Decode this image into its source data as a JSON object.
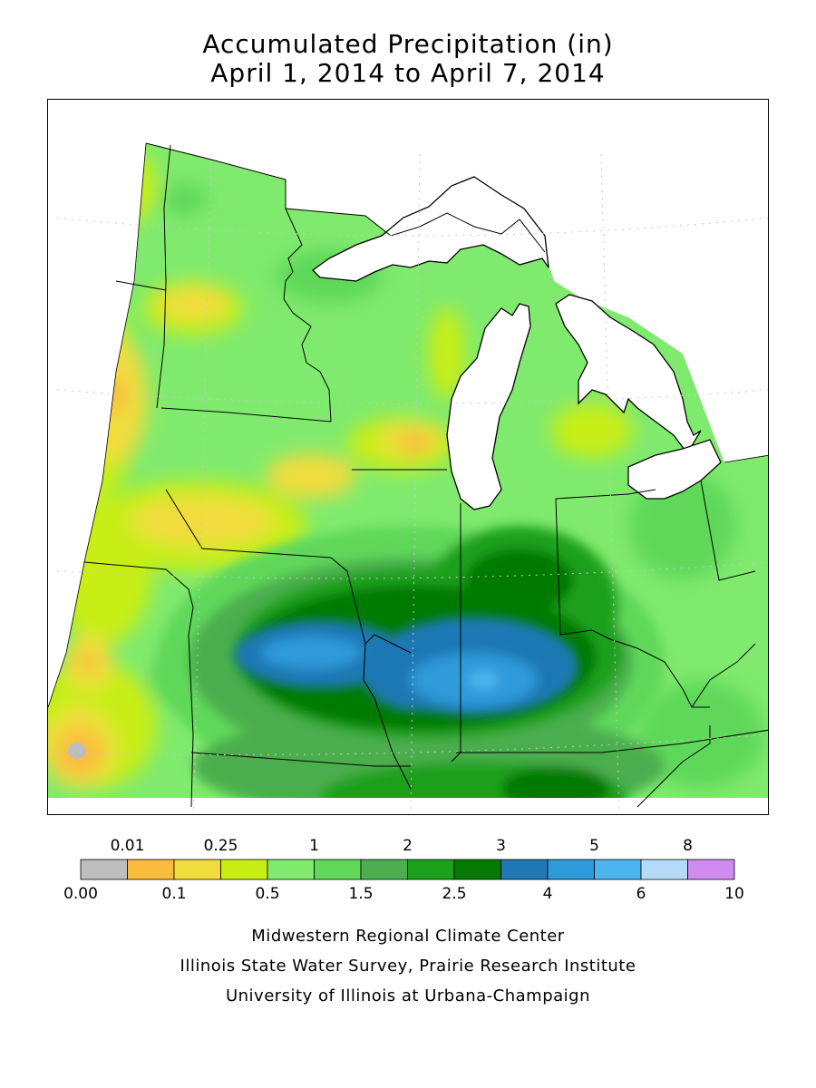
{
  "title": {
    "line1": "Accumulated Precipitation (in)",
    "line2": "April 1, 2014 to April 7, 2014"
  },
  "legend": {
    "bins": [
      {
        "color": "#bdbdbd"
      },
      {
        "color": "#fbbb3c"
      },
      {
        "color": "#f0dc3c"
      },
      {
        "color": "#c8ee14"
      },
      {
        "color": "#80ea6e"
      },
      {
        "color": "#5fd85a"
      },
      {
        "color": "#4cae4e"
      },
      {
        "color": "#1aa01a"
      },
      {
        "color": "#047a04"
      },
      {
        "color": "#1f78b4"
      },
      {
        "color": "#2d9ad9"
      },
      {
        "color": "#4cb4ee"
      },
      {
        "color": "#b4dcf8"
      },
      {
        "color": "#d08af0"
      }
    ],
    "top_labels": [
      "0.01",
      "0.25",
      "1",
      "2",
      "3",
      "5",
      "8"
    ],
    "bottom_labels": [
      "0.00",
      "0.1",
      "0.5",
      "1.5",
      "2.5",
      "4",
      "6",
      "10"
    ]
  },
  "credits": {
    "line1": "Midwestern Regional Climate Center",
    "line2": "Illinois State Water Survey, Prairie Research Institute",
    "line3": "University of Illinois at Urbana-Champaign"
  },
  "colors": {
    "water": "#ffffff",
    "border": "#000000",
    "grid": "#c8c8c8"
  }
}
